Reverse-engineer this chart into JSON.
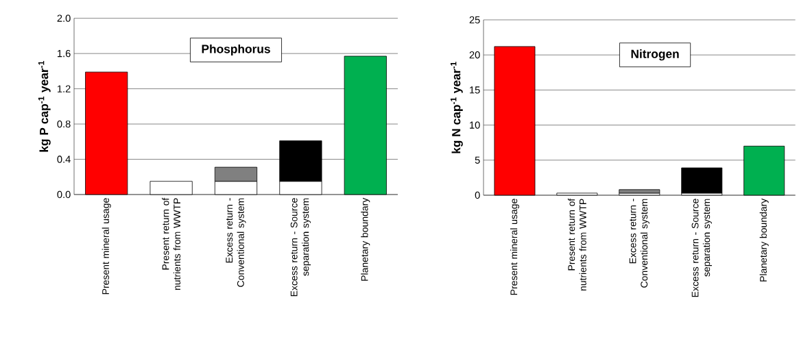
{
  "chart_data": [
    {
      "type": "bar",
      "title": "Phosphorus",
      "ylabel": "kg P cap$^{-1}$ year$^{-1}$",
      "categories": [
        "Present mineral usage",
        "Present return of nutrients from WWTP",
        "Excess return - Conventional system",
        "Excess return - Source separation system",
        "Planetary boundary"
      ],
      "stacked": true,
      "grid": "y",
      "ylim": [
        0,
        2.0
      ],
      "yticks": [
        {
          "value": 0,
          "label": "0.0"
        },
        0.4,
        0.8,
        1.2,
        1.6,
        {
          "value": 2.0,
          "label": "2.0"
        }
      ],
      "series": [
        {
          "colors": [
            "#ff0000",
            "#ffffff",
            "#ffffff",
            "#ffffff",
            "#00b050"
          ],
          "values": [
            1.39,
            0.15,
            0.15,
            0.15,
            1.57
          ]
        },
        {
          "color": "#808080",
          "values": [
            null,
            null,
            0.16,
            null,
            null
          ]
        },
        {
          "color": "#000000",
          "values": [
            null,
            null,
            null,
            0.46,
            null
          ]
        }
      ]
    },
    {
      "type": "bar",
      "title": "Nitrogen",
      "ylabel": "kg N cap$^{-1}$ year$^{-1}$",
      "categories": [
        "Present mineral usage",
        "Present return of nutrients from WWTP",
        "Excess return - Conventional system",
        "Excess return - Source separation system",
        "Planetary boundary"
      ],
      "stacked": true,
      "grid": "y",
      "ylim": [
        0,
        25
      ],
      "yticks": [
        0,
        5,
        10,
        15,
        20,
        25
      ],
      "series": [
        {
          "colors": [
            "#ff0000",
            "#ffffff",
            "#ffffff",
            "#ffffff",
            "#00b050"
          ],
          "values": [
            21.2,
            0.3,
            0.3,
            0.3,
            7.0
          ]
        },
        {
          "color": "#808080",
          "values": [
            null,
            null,
            0.5,
            null,
            null
          ]
        },
        {
          "color": "#000000",
          "values": [
            null,
            null,
            null,
            3.6,
            null
          ]
        }
      ]
    }
  ]
}
